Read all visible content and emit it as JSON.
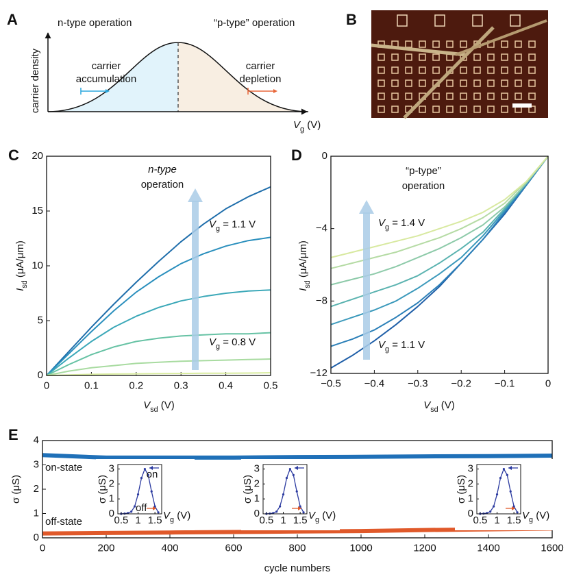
{
  "panel_a": {
    "label": "A",
    "left_title": "n-type operation",
    "right_title": "“p-type” operation",
    "ylabel": "carrier density",
    "left_note": [
      "carrier",
      "accumulation"
    ],
    "right_note": [
      "carrier",
      "depletion"
    ],
    "xlabel": [
      "V",
      "g",
      " (V)"
    ]
  },
  "panel_b": {
    "label": "B"
  },
  "chart_data": [
    {
      "type": "line",
      "label": "C",
      "xlabel": [
        "V",
        "sd",
        " (V)"
      ],
      "ylabel": [
        "I",
        "sd",
        " (μA/μm)"
      ],
      "annotations": [
        "n-type",
        "operation",
        [
          "V",
          "g",
          " = 1.1 V"
        ],
        [
          "V",
          "g",
          " = 0.8 V"
        ]
      ],
      "x": [
        0,
        0.05,
        0.1,
        0.15,
        0.2,
        0.25,
        0.3,
        0.35,
        0.4,
        0.45,
        0.5
      ],
      "series": [
        {
          "color": "#1f6eab",
          "values": [
            0,
            2.2,
            4.4,
            6.5,
            8.5,
            10.4,
            12.2,
            13.8,
            15.2,
            16.3,
            17.2
          ]
        },
        {
          "color": "#2a8fbd",
          "values": [
            0,
            2.0,
            4.0,
            5.9,
            7.6,
            9.0,
            10.2,
            11.1,
            11.8,
            12.3,
            12.6
          ]
        },
        {
          "color": "#3ba8b8",
          "values": [
            0,
            1.6,
            3.1,
            4.4,
            5.4,
            6.2,
            6.8,
            7.2,
            7.5,
            7.7,
            7.8
          ]
        },
        {
          "color": "#66c2a4",
          "values": [
            0,
            1.0,
            1.9,
            2.6,
            3.1,
            3.4,
            3.6,
            3.7,
            3.8,
            3.8,
            3.9
          ]
        },
        {
          "color": "#a8dba0",
          "values": [
            0,
            0.4,
            0.7,
            0.9,
            1.1,
            1.2,
            1.3,
            1.35,
            1.4,
            1.45,
            1.5
          ]
        },
        {
          "color": "#d9eca0",
          "values": [
            0,
            0.05,
            0.1,
            0.13,
            0.15,
            0.17,
            0.18,
            0.2,
            0.2,
            0.22,
            0.25
          ]
        }
      ],
      "xlim": [
        0,
        0.5
      ],
      "xticks": [
        0,
        0.1,
        0.2,
        0.3,
        0.4,
        0.5
      ],
      "ylim": [
        0,
        20
      ],
      "yticks": [
        0,
        5,
        10,
        15,
        20
      ]
    },
    {
      "type": "line",
      "label": "D",
      "xlabel": [
        "V",
        "sd",
        " (V)"
      ],
      "ylabel": [
        "I",
        "sd",
        " (μA/μm)"
      ],
      "annotations": [
        "“p-type”",
        "operation",
        [
          "V",
          "g",
          " = 1.4 V"
        ],
        [
          "V",
          "g",
          " = 1.1 V"
        ]
      ],
      "x": [
        -0.5,
        -0.45,
        -0.4,
        -0.35,
        -0.3,
        -0.25,
        -0.2,
        -0.15,
        -0.1,
        -0.05,
        0
      ],
      "series": [
        {
          "color": "#1f5fa8",
          "values": [
            -11.7,
            -11,
            -10.2,
            -9.3,
            -8.3,
            -7.2,
            -5.9,
            -4.6,
            -3.2,
            -1.6,
            0
          ]
        },
        {
          "color": "#2c80b8",
          "values": [
            -10.5,
            -10.1,
            -9.6,
            -8.9,
            -8.1,
            -7.1,
            -5.9,
            -4.6,
            -3.1,
            -1.6,
            0
          ]
        },
        {
          "color": "#3b99bb",
          "values": [
            -9.3,
            -8.9,
            -8.5,
            -8,
            -7.3,
            -6.5,
            -5.6,
            -4.4,
            -3.0,
            -1.5,
            0
          ]
        },
        {
          "color": "#5bb3b0",
          "values": [
            -8.3,
            -7.9,
            -7.5,
            -7.1,
            -6.6,
            -5.9,
            -5.1,
            -4.2,
            -2.9,
            -1.5,
            0
          ]
        },
        {
          "color": "#8dcaa9",
          "values": [
            -7.1,
            -6.8,
            -6.5,
            -6.1,
            -5.6,
            -5.1,
            -4.5,
            -3.8,
            -2.8,
            -1.5,
            0
          ]
        },
        {
          "color": "#b5dba4",
          "values": [
            -6.2,
            -5.9,
            -5.6,
            -5.3,
            -4.9,
            -4.5,
            -4.0,
            -3.4,
            -2.6,
            -1.4,
            0
          ]
        },
        {
          "color": "#d8e9a0",
          "values": [
            -5.6,
            -5.3,
            -5.0,
            -4.7,
            -4.4,
            -4.0,
            -3.6,
            -3.1,
            -2.4,
            -1.4,
            0
          ]
        }
      ],
      "xlim": [
        -0.5,
        0
      ],
      "xticks": [
        {
          "value": -0.5,
          "label": "−0.5"
        },
        {
          "value": -0.4,
          "label": "−0.4"
        },
        {
          "value": -0.3,
          "label": "−0.3"
        },
        {
          "value": -0.2,
          "label": "−0.2"
        },
        {
          "value": -0.1,
          "label": "−0.1"
        },
        0
      ],
      "ylim": [
        -12,
        0
      ],
      "yticks": [
        {
          "value": -12,
          "label": "−12"
        },
        {
          "value": -8,
          "label": "−8"
        },
        {
          "value": -4,
          "label": "−4"
        },
        0
      ]
    },
    {
      "type": "line",
      "label": "E",
      "xlabel": "cycle numbers",
      "ylabel": "σ (μS)",
      "x": [
        0,
        200,
        400,
        600,
        800,
        1000,
        1200,
        1400,
        1600
      ],
      "series": [
        {
          "name": "on-state",
          "color": "#1f70b8",
          "values": [
            3.4,
            3.3,
            3.3,
            3.3,
            3.32,
            3.33,
            3.35,
            3.36,
            3.38
          ]
        },
        {
          "name": "off-state",
          "color": "#e0592a",
          "values": [
            0.18,
            0.2,
            0.22,
            0.24,
            0.26,
            0.28,
            0.32,
            0.35,
            0.38
          ]
        }
      ],
      "xlim": [
        0,
        1600
      ],
      "xticks": [
        0,
        200,
        400,
        600,
        800,
        1000,
        1200,
        1400,
        1600
      ],
      "ylim": [
        0,
        4
      ],
      "yticks": [
        0,
        1,
        2,
        3,
        4
      ]
    },
    {
      "type": "line",
      "xlabel": [
        "V",
        "g",
        " (V)"
      ],
      "ylabel": "σ (μS)",
      "annotations": [
        "on",
        "off"
      ],
      "markers": true,
      "x": [
        0.5,
        0.6,
        0.7,
        0.8,
        0.9,
        1.0,
        1.1,
        1.2,
        1.3,
        1.4,
        1.5,
        1.6
      ],
      "series": [
        {
          "color": "#2b3aa0",
          "values": [
            0,
            0.02,
            0.05,
            0.15,
            0.5,
            1.3,
            2.4,
            3.0,
            2.6,
            1.5,
            0.5,
            0.1
          ]
        }
      ],
      "xlim": [
        0.4,
        1.7
      ],
      "xticks": [
        0.5,
        1,
        1.5
      ],
      "ylim": [
        0,
        3.3
      ],
      "yticks": [
        0,
        1,
        2,
        3
      ]
    },
    {
      "type": "line",
      "xlabel": [
        "V",
        "g",
        " (V)"
      ],
      "ylabel": "σ (μS)",
      "markers": true,
      "x": [
        0.5,
        0.6,
        0.7,
        0.8,
        0.9,
        1.0,
        1.1,
        1.2,
        1.3,
        1.4,
        1.5,
        1.6
      ],
      "series": [
        {
          "color": "#2b3aa0",
          "values": [
            0,
            0.02,
            0.05,
            0.15,
            0.5,
            1.3,
            2.4,
            3.0,
            2.6,
            1.5,
            0.5,
            0.1
          ]
        }
      ],
      "xlim": [
        0.4,
        1.7
      ],
      "xticks": [
        0.5,
        1,
        1.5
      ],
      "ylim": [
        0,
        3.3
      ],
      "yticks": [
        0,
        1,
        2,
        3
      ]
    },
    {
      "type": "line",
      "xlabel": [
        "V",
        "g",
        " (V)"
      ],
      "ylabel": "σ (μS)",
      "markers": true,
      "x": [
        0.5,
        0.6,
        0.7,
        0.8,
        0.9,
        1.0,
        1.1,
        1.2,
        1.3,
        1.4,
        1.5,
        1.6
      ],
      "series": [
        {
          "color": "#2b3aa0",
          "values": [
            0,
            0.02,
            0.05,
            0.15,
            0.5,
            1.3,
            2.4,
            3.0,
            2.6,
            1.5,
            0.5,
            0.1
          ]
        }
      ],
      "xlim": [
        0.4,
        1.7
      ],
      "xticks": [
        0.5,
        1,
        1.5
      ],
      "ylim": [
        0,
        3.3
      ],
      "yticks": [
        0,
        1,
        2,
        3
      ]
    }
  ]
}
